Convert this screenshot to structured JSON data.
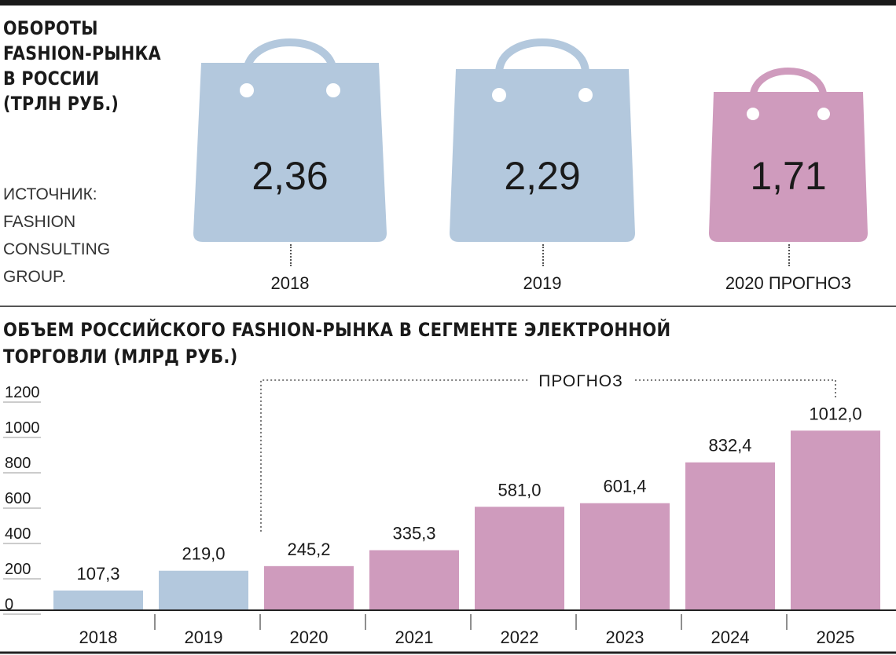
{
  "top_section": {
    "title": "ОБОРОТЫ\nFASHION-РЫНКА\nВ РОССИИ\n(ТРЛН РУБ.)",
    "source": "ИСТОЧНИК:\nFASHION\nCONSULTING\nGROUP.",
    "bags": [
      {
        "value": "2,36",
        "year": "2018",
        "color": "#b3c8dd"
      },
      {
        "value": "2,29",
        "year": "2019",
        "color": "#b3c8dd"
      },
      {
        "value": "1,71",
        "year": "2020 ПРОГНОЗ",
        "color": "#cf9bbd"
      }
    ]
  },
  "bottom_section": {
    "title": "ОБЪЕМ РОССИЙСКОГО FASHION-РЫНКА В СЕГМЕНТЕ ЭЛЕКТРОННОЙ\nТОРГОВЛИ (МЛРД РУБ.)",
    "forecast_label": "ПРОГНОЗ"
  },
  "chart_data": [
    {
      "type": "bar",
      "title": "ОБОРОТЫ FASHION-РЫНКА В РОССИИ (ТРЛН РУБ.)",
      "categories": [
        "2018",
        "2019",
        "2020 ПРОГНОЗ"
      ],
      "values": [
        2.36,
        2.29,
        1.71
      ],
      "value_labels": [
        "2,36",
        "2,29",
        "1,71"
      ],
      "colors": [
        "#b3c8dd",
        "#b3c8dd",
        "#cf9bbd"
      ]
    },
    {
      "type": "bar",
      "title": "ОБЪЕМ РОССИЙСКОГО FASHION-РЫНКА В СЕГМЕНТЕ ЭЛЕКТРОННОЙ ТОРГОВЛИ (МЛРД РУБ.)",
      "categories": [
        "2018",
        "2019",
        "2020",
        "2021",
        "2022",
        "2023",
        "2024",
        "2025"
      ],
      "values": [
        107.3,
        219.0,
        245.2,
        335.3,
        581.0,
        601.4,
        832.4,
        1012.0
      ],
      "value_labels": [
        "107,3",
        "219,0",
        "245,2",
        "335,3",
        "581,0",
        "601,4",
        "832,4",
        "1012,0"
      ],
      "forecast_from": "2020",
      "ylim": [
        0,
        1200
      ],
      "yticks": [
        0,
        200,
        400,
        600,
        800,
        1000,
        1200
      ],
      "grid": false,
      "colors": {
        "actual": "#b3c8dd",
        "forecast": "#cf9bbd"
      }
    }
  ]
}
